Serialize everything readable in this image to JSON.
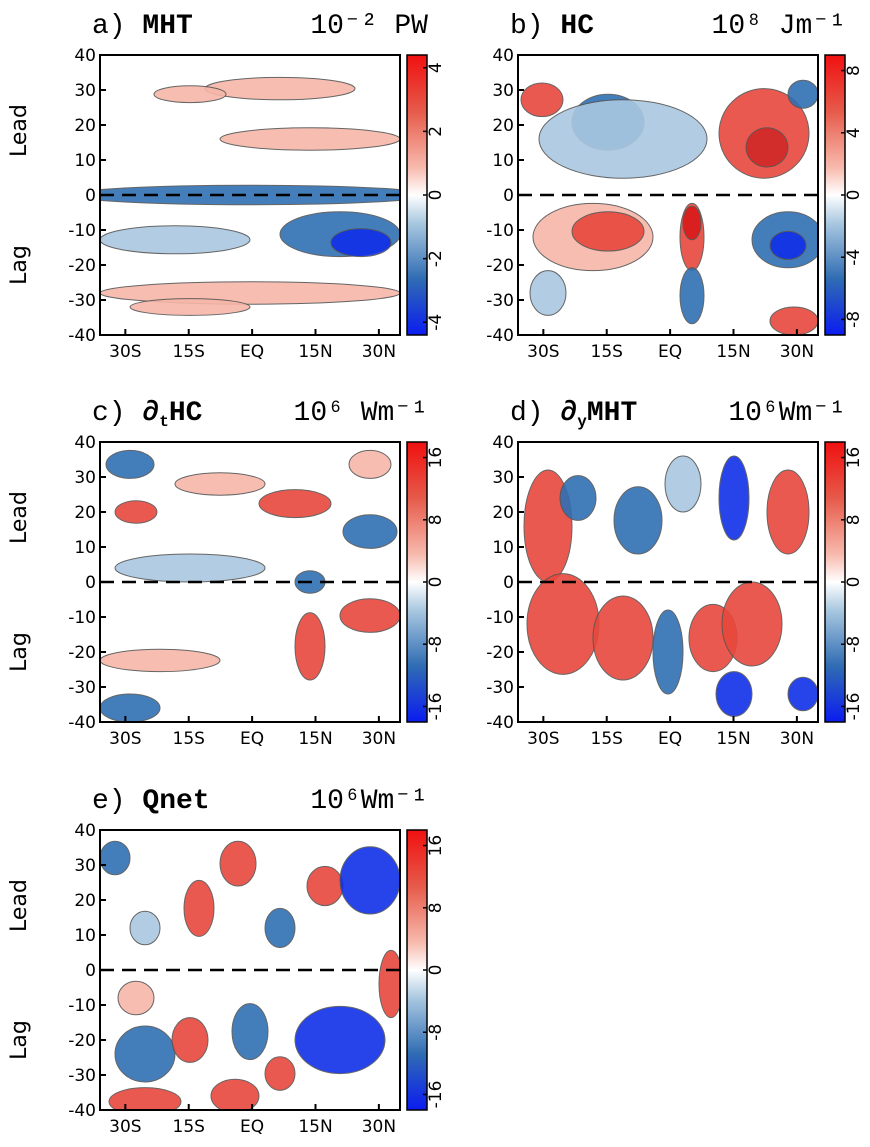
{
  "chart_data": [
    {
      "type": "contour",
      "label": "a)",
      "name": "MHT",
      "unit": "10⁻² PW",
      "xlim": [
        -36,
        35
      ],
      "xticks": [
        {
          "value": -30,
          "label": "30S"
        },
        {
          "value": -15,
          "label": "15S"
        },
        {
          "value": 0,
          "label": "EQ"
        },
        {
          "value": 15,
          "label": "15N"
        },
        {
          "value": 30,
          "label": "30N"
        }
      ],
      "ylim": [
        -40,
        40
      ],
      "yticks": [
        -40,
        -30,
        -20,
        -10,
        0,
        10,
        20,
        30,
        40
      ],
      "ylabels": [
        "Lead",
        "Lag"
      ],
      "clim": [
        -4.4,
        4.4
      ],
      "cticks": [
        -4,
        -2,
        0,
        2,
        4
      ]
    },
    {
      "type": "contour",
      "label": "b)",
      "name": "HC",
      "unit": "10⁸ Jm⁻¹",
      "xlim": [
        -36,
        35
      ],
      "xticks": [
        {
          "value": -30,
          "label": "30S"
        },
        {
          "value": -15,
          "label": "15S"
        },
        {
          "value": 0,
          "label": "EQ"
        },
        {
          "value": 15,
          "label": "15N"
        },
        {
          "value": 30,
          "label": "30N"
        }
      ],
      "ylim": [
        -40,
        40
      ],
      "yticks": [
        -40,
        -30,
        -20,
        -10,
        0,
        10,
        20,
        30,
        40
      ],
      "clim": [
        -9,
        9
      ],
      "cticks": [
        -8,
        -4,
        0,
        4,
        8
      ]
    },
    {
      "type": "contour",
      "label": "c)",
      "operator": "∂",
      "subscript": "t",
      "name": "HC",
      "unit": "10⁶ Wm⁻¹",
      "xlim": [
        -36,
        35
      ],
      "xticks": [
        {
          "value": -30,
          "label": "30S"
        },
        {
          "value": -15,
          "label": "15S"
        },
        {
          "value": 0,
          "label": "EQ"
        },
        {
          "value": 15,
          "label": "15N"
        },
        {
          "value": 30,
          "label": "30N"
        }
      ],
      "ylim": [
        -40,
        40
      ],
      "yticks": [
        -40,
        -30,
        -20,
        -10,
        0,
        10,
        20,
        30,
        40
      ],
      "ylabels": [
        "Lead",
        "Lag"
      ],
      "clim": [
        -18,
        18
      ],
      "cticks": [
        -16,
        -8,
        0,
        8,
        16
      ]
    },
    {
      "type": "contour",
      "label": "d)",
      "operator": "∂",
      "subscript": "y",
      "name": "MHT",
      "unit": "10⁶Wm⁻¹",
      "xlim": [
        -36,
        35
      ],
      "xticks": [
        {
          "value": -30,
          "label": "30S"
        },
        {
          "value": -15,
          "label": "15S"
        },
        {
          "value": 0,
          "label": "EQ"
        },
        {
          "value": 15,
          "label": "15N"
        },
        {
          "value": 30,
          "label": "30N"
        }
      ],
      "ylim": [
        -40,
        40
      ],
      "yticks": [
        -40,
        -30,
        -20,
        -10,
        0,
        10,
        20,
        30,
        40
      ],
      "clim": [
        -18,
        18
      ],
      "cticks": [
        -16,
        -8,
        0,
        8,
        16
      ]
    },
    {
      "type": "contour",
      "label": "e)",
      "name": "Qnet",
      "unit": "10⁶Wm⁻¹",
      "xlim": [
        -36,
        35
      ],
      "xticks": [
        {
          "value": -30,
          "label": "30S"
        },
        {
          "value": -15,
          "label": "15S"
        },
        {
          "value": 0,
          "label": "EQ"
        },
        {
          "value": 15,
          "label": "15N"
        },
        {
          "value": 30,
          "label": "30N"
        }
      ],
      "ylim": [
        -40,
        40
      ],
      "yticks": [
        -40,
        -30,
        -20,
        -10,
        0,
        10,
        20,
        30,
        40
      ],
      "ylabels": [
        "Lead",
        "Lag"
      ],
      "clim": [
        -18,
        18
      ],
      "cticks": [
        -16,
        -8,
        0,
        8,
        16
      ]
    }
  ]
}
